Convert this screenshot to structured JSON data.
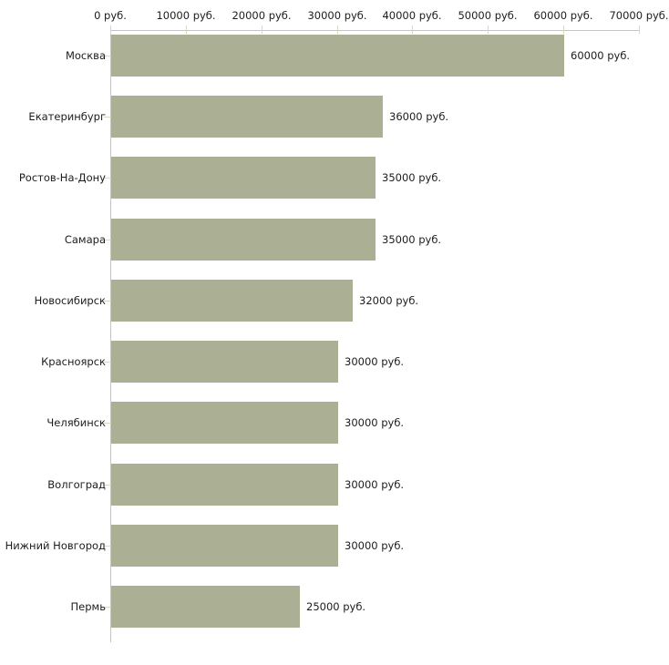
{
  "chart_data": {
    "type": "bar",
    "orientation": "horizontal",
    "title": "",
    "xlabel": "",
    "ylabel": "",
    "unit": "руб.",
    "categories": [
      "Москва",
      "Екатеринбург",
      "Ростов-На-Дону",
      "Самара",
      "Новосибирск",
      "Красноярск",
      "Челябинск",
      "Волгоград",
      "Нижний Новгород",
      "Пермь"
    ],
    "values": [
      60000,
      36000,
      35000,
      35000,
      32000,
      30000,
      30000,
      30000,
      30000,
      25000
    ],
    "value_labels": [
      "60000 руб.",
      "36000 руб.",
      "35000 руб.",
      "35000 руб.",
      "32000 руб.",
      "30000 руб.",
      "30000 руб.",
      "30000 руб.",
      "30000 руб.",
      "25000 руб."
    ],
    "x_axis": {
      "min": 0,
      "max": 70000,
      "tick_interval": 10000,
      "tick_labels": [
        "0 руб.",
        "10000 руб.",
        "20000 руб.",
        "30000 руб.",
        "40000 руб.",
        "50000 руб.",
        "60000 руб.",
        "70000 руб."
      ],
      "position": "top"
    },
    "grid": false,
    "legend": false,
    "colors": {
      "bar": "#abb094",
      "axis_line": "#c4c4c2",
      "tick_mark": "#d8d9c0",
      "text": "#1c1c1c",
      "background": "#ffffff"
    }
  }
}
